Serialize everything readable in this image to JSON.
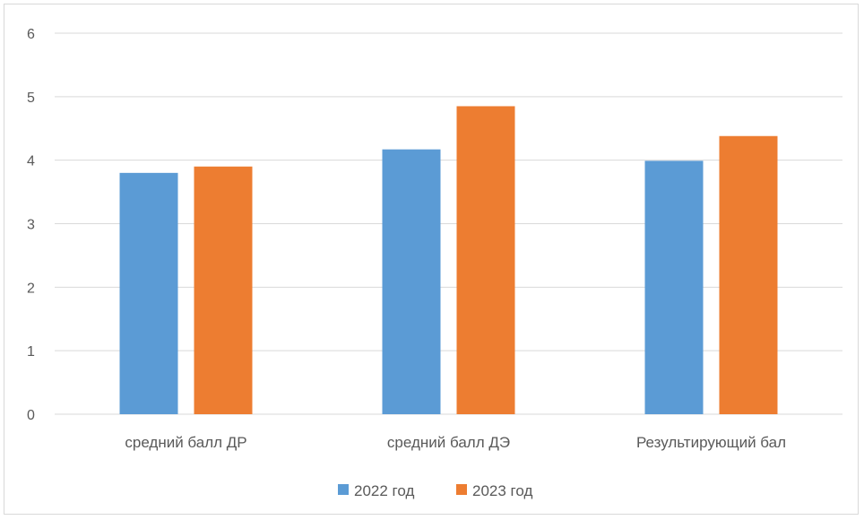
{
  "chart_data": {
    "type": "bar",
    "categories": [
      "средний балл ДР",
      "средний балл ДЭ",
      "Результирующий бал"
    ],
    "series": [
      {
        "name": "2022 год",
        "color": "#5b9bd5",
        "values": [
          3.8,
          4.17,
          3.99
        ]
      },
      {
        "name": "2023 год",
        "color": "#ed7d31",
        "values": [
          3.9,
          4.85,
          4.38
        ]
      }
    ],
    "yticks": [
      0,
      1,
      2,
      3,
      4,
      5,
      6
    ],
    "ylim": [
      0,
      6
    ],
    "grid": true,
    "legend_position": "bottom"
  }
}
